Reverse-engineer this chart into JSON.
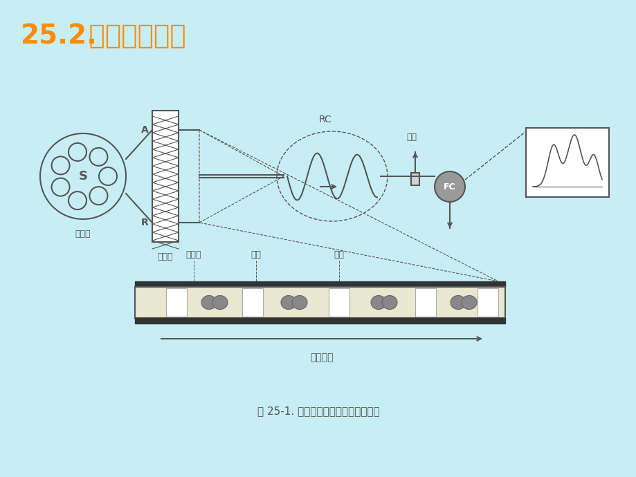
{
  "bg_color": "#c8eef5",
  "title_number": "25.2.",
  "title_text": " 流动注射分析",
  "title_color": "#FF8C00",
  "title_fontsize": 28,
  "caption": "图 25-1. 气泡间隔连续流动分析示意图",
  "caption_fontsize": 11,
  "label_S": "S",
  "label_A": "A",
  "label_R": "R",
  "label_RC": "RC",
  "label_FC": "FC",
  "label_paopao": "排泡",
  "label_kongqipao": "空气泡",
  "label_shiyang": "试样",
  "label_shiji": "试剂",
  "label_liudongfangxiang": "流动方向",
  "label_shiyangpan": "试样盘",
  "label_bodongbeng": "蠕动泵",
  "diagram_color": "#555555",
  "fc_color": "#888888"
}
